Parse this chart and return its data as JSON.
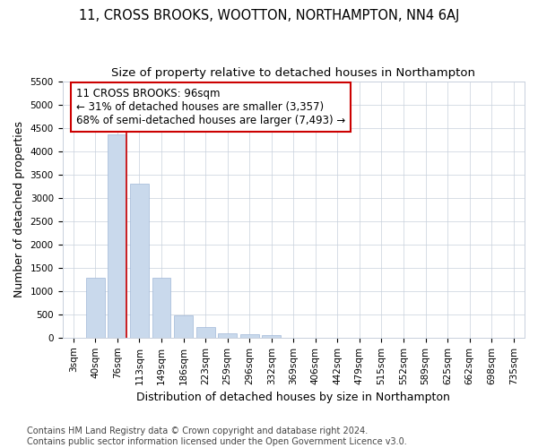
{
  "title": "11, CROSS BROOKS, WOOTTON, NORTHAMPTON, NN4 6AJ",
  "subtitle": "Size of property relative to detached houses in Northampton",
  "xlabel": "Distribution of detached houses by size in Northampton",
  "ylabel": "Number of detached properties",
  "categories": [
    "3sqm",
    "40sqm",
    "76sqm",
    "113sqm",
    "149sqm",
    "186sqm",
    "223sqm",
    "259sqm",
    "296sqm",
    "332sqm",
    "369sqm",
    "406sqm",
    "442sqm",
    "479sqm",
    "515sqm",
    "552sqm",
    "589sqm",
    "625sqm",
    "662sqm",
    "698sqm",
    "735sqm"
  ],
  "values": [
    0,
    1280,
    4350,
    3300,
    1280,
    480,
    230,
    100,
    70,
    50,
    0,
    0,
    0,
    0,
    0,
    0,
    0,
    0,
    0,
    0,
    0
  ],
  "bar_color": "#c9d9ec",
  "bar_edgecolor": "#a0b8d8",
  "vline_color": "#cc0000",
  "vline_position": 2.425,
  "annotation_text": "11 CROSS BROOKS: 96sqm\n← 31% of detached houses are smaller (3,357)\n68% of semi-detached houses are larger (7,493) →",
  "annotation_box_facecolor": "#ffffff",
  "annotation_box_edgecolor": "#cc0000",
  "ylim": [
    0,
    5500
  ],
  "yticks": [
    0,
    500,
    1000,
    1500,
    2000,
    2500,
    3000,
    3500,
    4000,
    4500,
    5000,
    5500
  ],
  "footnote": "Contains HM Land Registry data © Crown copyright and database right 2024.\nContains public sector information licensed under the Open Government Licence v3.0.",
  "background_color": "#ffffff",
  "grid_color": "#c8d0dc",
  "title_fontsize": 10.5,
  "subtitle_fontsize": 9.5,
  "axis_label_fontsize": 9,
  "tick_fontsize": 7.5,
  "annotation_fontsize": 8.5,
  "footnote_fontsize": 7
}
